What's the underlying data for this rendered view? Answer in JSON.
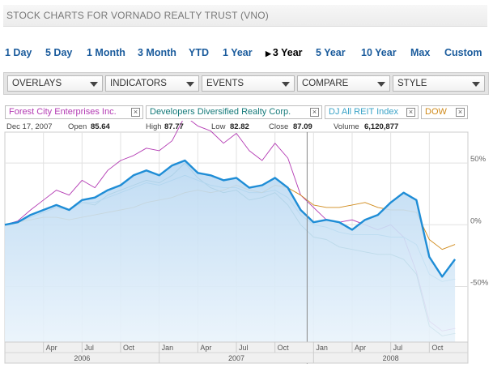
{
  "header": {
    "title": "STOCK CHARTS FOR VORNADO REALTY TRUST (VNO)"
  },
  "ranges": [
    {
      "label": "1 Day"
    },
    {
      "label": "5 Day"
    },
    {
      "label": "1 Month"
    },
    {
      "label": "3 Month"
    },
    {
      "label": "YTD"
    },
    {
      "label": "1 Year"
    },
    {
      "label": "3 Year",
      "active": true
    },
    {
      "label": "5 Year"
    },
    {
      "label": "10 Year"
    },
    {
      "label": "Max"
    },
    {
      "label": "Custom"
    }
  ],
  "toolbar": {
    "overlays": "OVERLAYS",
    "indicators": "INDICATORS",
    "events": "EVENTS",
    "compare": "COMPARE",
    "style": "STYLE"
  },
  "compare": [
    {
      "label": "Forest City Enterprises Inc.",
      "color": "#b33ab3"
    },
    {
      "label": "Developers Diversified Realty Corp.",
      "color": "#157a7a"
    },
    {
      "label": "DJ All REIT Index",
      "color": "#3aa3c7"
    },
    {
      "label": "DOW",
      "color": "#d08a1a"
    }
  ],
  "quote": {
    "date": "Dec 17, 2007",
    "open_label": "Open",
    "open": "85.64",
    "high_label": "High",
    "high": "87.77",
    "low_label": "Low",
    "low": "82.82",
    "close_label": "Close",
    "close": "87.09",
    "volume_label": "Volume",
    "volume": "6,120,877"
  },
  "chart_data": {
    "type": "line",
    "ylim": [
      -95,
      75
    ],
    "yticks": [
      {
        "v": 50,
        "label": "50%"
      },
      {
        "v": 0,
        "label": "0%"
      },
      {
        "v": -50,
        "label": "-50%"
      }
    ],
    "x_months": [
      {
        "pos": 3,
        "label": "Apr"
      },
      {
        "pos": 6,
        "label": "Jul"
      },
      {
        "pos": 9,
        "label": "Oct"
      },
      {
        "pos": 12,
        "label": "Jan"
      },
      {
        "pos": 15,
        "label": "Apr"
      },
      {
        "pos": 18,
        "label": "Jul"
      },
      {
        "pos": 21,
        "label": "Oct"
      },
      {
        "pos": 24,
        "label": "Jan"
      },
      {
        "pos": 27,
        "label": "Apr"
      },
      {
        "pos": 30,
        "label": "Jul"
      },
      {
        "pos": 33,
        "label": "Oct"
      }
    ],
    "x_years": [
      {
        "start": 0,
        "end": 12,
        "label": "2006"
      },
      {
        "start": 12,
        "end": 24,
        "label": "2007"
      },
      {
        "start": 24,
        "end": 36,
        "label": "2008"
      }
    ],
    "crosshair_x": 23.5,
    "series": [
      {
        "name": "Forest City Enterprises Inc.",
        "color": "#b33ab3",
        "width": 0.9,
        "fill": false,
        "points": [
          [
            0,
            0
          ],
          [
            1,
            3
          ],
          [
            2,
            12
          ],
          [
            3,
            20
          ],
          [
            4,
            28
          ],
          [
            5,
            24
          ],
          [
            6,
            36
          ],
          [
            7,
            30
          ],
          [
            8,
            44
          ],
          [
            9,
            52
          ],
          [
            10,
            56
          ],
          [
            11,
            62
          ],
          [
            12,
            60
          ],
          [
            13,
            68
          ],
          [
            14,
            88
          ],
          [
            15,
            80
          ],
          [
            16,
            76
          ],
          [
            17,
            66
          ],
          [
            18,
            74
          ],
          [
            19,
            60
          ],
          [
            20,
            52
          ],
          [
            21,
            66
          ],
          [
            22,
            54
          ],
          [
            23,
            24
          ],
          [
            24,
            14
          ],
          [
            25,
            4
          ],
          [
            26,
            2
          ],
          [
            27,
            4
          ],
          [
            28,
            0
          ],
          [
            29,
            -4
          ],
          [
            30,
            0
          ],
          [
            31,
            -10
          ],
          [
            32,
            -38
          ],
          [
            33,
            -78
          ],
          [
            34,
            -86
          ],
          [
            35,
            -84
          ]
        ]
      },
      {
        "name": "Developers Diversified Realty Corp.",
        "color": "#157a7a",
        "width": 0.9,
        "fill": false,
        "points": [
          [
            0,
            0
          ],
          [
            1,
            2
          ],
          [
            2,
            6
          ],
          [
            3,
            10
          ],
          [
            4,
            14
          ],
          [
            5,
            12
          ],
          [
            6,
            18
          ],
          [
            7,
            16
          ],
          [
            8,
            24
          ],
          [
            9,
            28
          ],
          [
            10,
            32
          ],
          [
            11,
            36
          ],
          [
            12,
            34
          ],
          [
            13,
            40
          ],
          [
            14,
            50
          ],
          [
            15,
            38
          ],
          [
            16,
            30
          ],
          [
            17,
            26
          ],
          [
            18,
            28
          ],
          [
            19,
            20
          ],
          [
            20,
            22
          ],
          [
            21,
            26
          ],
          [
            22,
            16
          ],
          [
            23,
            0
          ],
          [
            24,
            -10
          ],
          [
            25,
            -12
          ],
          [
            26,
            -18
          ],
          [
            27,
            -20
          ],
          [
            28,
            -22
          ],
          [
            29,
            -24
          ],
          [
            30,
            -24
          ],
          [
            31,
            -28
          ],
          [
            32,
            -40
          ],
          [
            33,
            -82
          ],
          [
            34,
            -90
          ],
          [
            35,
            -88
          ]
        ]
      },
      {
        "name": "DJ All REIT Index",
        "color": "#3aa3c7",
        "width": 0.9,
        "fill": false,
        "points": [
          [
            0,
            0
          ],
          [
            1,
            2
          ],
          [
            2,
            6
          ],
          [
            3,
            10
          ],
          [
            4,
            14
          ],
          [
            5,
            12
          ],
          [
            6,
            18
          ],
          [
            7,
            18
          ],
          [
            8,
            22
          ],
          [
            9,
            26
          ],
          [
            10,
            30
          ],
          [
            11,
            34
          ],
          [
            12,
            32
          ],
          [
            13,
            36
          ],
          [
            14,
            40
          ],
          [
            15,
            36
          ],
          [
            16,
            32
          ],
          [
            17,
            30
          ],
          [
            18,
            30
          ],
          [
            19,
            26
          ],
          [
            20,
            26
          ],
          [
            21,
            28
          ],
          [
            22,
            22
          ],
          [
            23,
            8
          ],
          [
            24,
            0
          ],
          [
            25,
            -2
          ],
          [
            26,
            -6
          ],
          [
            27,
            -8
          ],
          [
            28,
            -8
          ],
          [
            29,
            -8
          ],
          [
            30,
            -10
          ],
          [
            31,
            -10
          ],
          [
            32,
            -16
          ],
          [
            33,
            -40
          ],
          [
            34,
            -46
          ],
          [
            35,
            -44
          ]
        ]
      },
      {
        "name": "DOW",
        "color": "#d08a1a",
        "width": 0.9,
        "fill": false,
        "points": [
          [
            0,
            0
          ],
          [
            1,
            2
          ],
          [
            2,
            4
          ],
          [
            3,
            6
          ],
          [
            4,
            6
          ],
          [
            5,
            4
          ],
          [
            6,
            6
          ],
          [
            7,
            8
          ],
          [
            8,
            10
          ],
          [
            9,
            12
          ],
          [
            10,
            14
          ],
          [
            11,
            18
          ],
          [
            12,
            20
          ],
          [
            13,
            22
          ],
          [
            14,
            26
          ],
          [
            15,
            28
          ],
          [
            16,
            26
          ],
          [
            17,
            28
          ],
          [
            18,
            32
          ],
          [
            19,
            28
          ],
          [
            20,
            26
          ],
          [
            21,
            32
          ],
          [
            22,
            30
          ],
          [
            23,
            24
          ],
          [
            24,
            16
          ],
          [
            25,
            14
          ],
          [
            26,
            14
          ],
          [
            27,
            16
          ],
          [
            28,
            18
          ],
          [
            29,
            14
          ],
          [
            30,
            12
          ],
          [
            31,
            12
          ],
          [
            32,
            10
          ],
          [
            33,
            -12
          ],
          [
            34,
            -20
          ],
          [
            35,
            -16
          ]
        ]
      },
      {
        "name": "Vornado Realty Trust",
        "color": "#1f8dd6",
        "width": 2.4,
        "fill": true,
        "points": [
          [
            0,
            0
          ],
          [
            1,
            2
          ],
          [
            2,
            8
          ],
          [
            3,
            12
          ],
          [
            4,
            16
          ],
          [
            5,
            12
          ],
          [
            6,
            20
          ],
          [
            7,
            22
          ],
          [
            8,
            28
          ],
          [
            9,
            32
          ],
          [
            10,
            40
          ],
          [
            11,
            44
          ],
          [
            12,
            40
          ],
          [
            13,
            48
          ],
          [
            14,
            52
          ],
          [
            15,
            42
          ],
          [
            16,
            40
          ],
          [
            17,
            36
          ],
          [
            18,
            38
          ],
          [
            19,
            30
          ],
          [
            20,
            32
          ],
          [
            21,
            38
          ],
          [
            22,
            30
          ],
          [
            23,
            12
          ],
          [
            24,
            2
          ],
          [
            25,
            4
          ],
          [
            26,
            2
          ],
          [
            27,
            -4
          ],
          [
            28,
            4
          ],
          [
            29,
            8
          ],
          [
            30,
            18
          ],
          [
            31,
            26
          ],
          [
            32,
            20
          ],
          [
            33,
            -26
          ],
          [
            34,
            -42
          ],
          [
            35,
            -28
          ]
        ]
      }
    ]
  }
}
